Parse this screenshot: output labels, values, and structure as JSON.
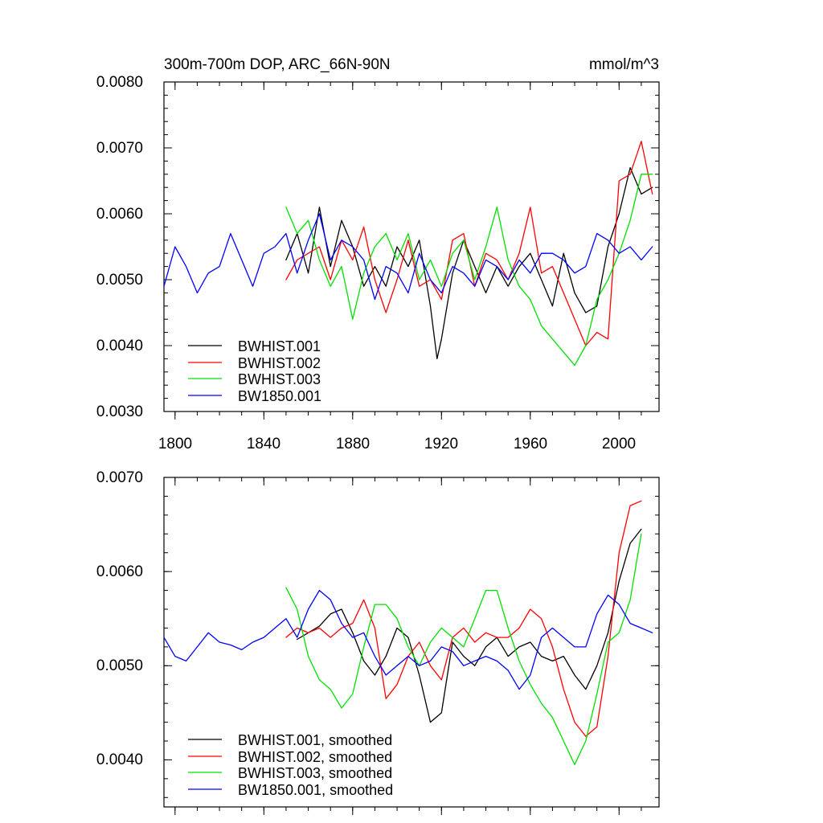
{
  "colors": {
    "BWHIST.001": "#000000",
    "BWHIST.002": "#ff0000",
    "BWHIST.003": "#00e000",
    "BW1850.001": "#0000ff"
  },
  "chart_data": [
    {
      "type": "line",
      "title": "300m-700m DOP, ARC_66N-90N",
      "units": "mmol/m^3",
      "xlabel": "",
      "ylabel": "",
      "xlim": [
        1795,
        2018
      ],
      "ylim": [
        0.003,
        0.008
      ],
      "grid": false,
      "legend_position": "bottom-left",
      "yticks": [
        {
          "value": 0.003,
          "label": "0.0030"
        },
        {
          "value": 0.004,
          "label": "0.0040"
        },
        {
          "value": 0.005,
          "label": "0.0050"
        },
        {
          "value": 0.006,
          "label": "0.0060"
        },
        {
          "value": 0.007,
          "label": "0.0070"
        },
        {
          "value": 0.008,
          "label": "0.0080"
        }
      ],
      "xticks": [
        {
          "value": 1800,
          "label": "1800"
        },
        {
          "value": 1840,
          "label": "1840"
        },
        {
          "value": 1880,
          "label": "1880"
        },
        {
          "value": 1920,
          "label": "1920"
        },
        {
          "value": 1960,
          "label": "1960"
        },
        {
          "value": 2000,
          "label": "2000"
        }
      ],
      "series": [
        {
          "name": "BWHIST.001",
          "color": "#000000",
          "x": [
            1850,
            1855,
            1860,
            1865,
            1870,
            1875,
            1880,
            1885,
            1890,
            1895,
            1900,
            1905,
            1910,
            1915,
            1918,
            1920,
            1925,
            1930,
            1935,
            1940,
            1945,
            1950,
            1955,
            1960,
            1965,
            1970,
            1975,
            1980,
            1985,
            1990,
            1995,
            2000,
            2005,
            2010,
            2015
          ],
          "y": [
            0.0053,
            0.0057,
            0.0051,
            0.0061,
            0.0052,
            0.0059,
            0.0055,
            0.0049,
            0.0052,
            0.0049,
            0.0055,
            0.0052,
            0.0056,
            0.0046,
            0.0038,
            0.0041,
            0.0051,
            0.0056,
            0.0052,
            0.0048,
            0.0052,
            0.0049,
            0.0052,
            0.0054,
            0.005,
            0.0046,
            0.0054,
            0.0048,
            0.0045,
            0.0046,
            0.0055,
            0.006,
            0.0067,
            0.0063,
            0.0064
          ]
        },
        {
          "name": "BWHIST.002",
          "color": "#ff0000",
          "x": [
            1850,
            1855,
            1860,
            1865,
            1870,
            1875,
            1880,
            1885,
            1890,
            1895,
            1900,
            1905,
            1910,
            1915,
            1920,
            1925,
            1930,
            1935,
            1940,
            1945,
            1950,
            1955,
            1960,
            1965,
            1970,
            1975,
            1980,
            1985,
            1990,
            1995,
            2000,
            2005,
            2010,
            2015
          ],
          "y": [
            0.005,
            0.0053,
            0.0054,
            0.0055,
            0.005,
            0.0056,
            0.0053,
            0.0058,
            0.005,
            0.0045,
            0.005,
            0.0056,
            0.0049,
            0.005,
            0.0047,
            0.0056,
            0.0057,
            0.0049,
            0.0054,
            0.0053,
            0.005,
            0.0054,
            0.0061,
            0.0051,
            0.0052,
            0.0048,
            0.0044,
            0.004,
            0.0042,
            0.0041,
            0.0065,
            0.0066,
            0.0071,
            0.0063
          ]
        },
        {
          "name": "BWHIST.003",
          "color": "#00e000",
          "x": [
            1850,
            1855,
            1860,
            1865,
            1870,
            1875,
            1880,
            1885,
            1890,
            1895,
            1900,
            1905,
            1910,
            1915,
            1920,
            1925,
            1930,
            1935,
            1940,
            1945,
            1950,
            1955,
            1960,
            1965,
            1970,
            1975,
            1980,
            1985,
            1990,
            1995,
            2000,
            2005,
            2010,
            2015
          ],
          "y": [
            0.0061,
            0.0057,
            0.0059,
            0.0053,
            0.0049,
            0.0052,
            0.0044,
            0.0051,
            0.0055,
            0.0057,
            0.0053,
            0.0057,
            0.005,
            0.0053,
            0.0049,
            0.0054,
            0.0056,
            0.005,
            0.0055,
            0.0061,
            0.0053,
            0.0049,
            0.0047,
            0.0043,
            0.0041,
            0.0039,
            0.0037,
            0.004,
            0.0047,
            0.005,
            0.0054,
            0.0059,
            0.0066,
            0.0066
          ]
        },
        {
          "name": "BW1850.001",
          "color": "#0000ff",
          "x": [
            1795,
            1800,
            1805,
            1810,
            1815,
            1820,
            1825,
            1830,
            1835,
            1840,
            1845,
            1850,
            1855,
            1860,
            1865,
            1870,
            1875,
            1880,
            1885,
            1890,
            1895,
            1900,
            1905,
            1910,
            1915,
            1920,
            1925,
            1930,
            1935,
            1940,
            1945,
            1950,
            1955,
            1960,
            1965,
            1970,
            1975,
            1980,
            1985,
            1990,
            1995,
            2000,
            2005,
            2010,
            2015
          ],
          "y": [
            0.0049,
            0.0055,
            0.0052,
            0.0048,
            0.0051,
            0.0052,
            0.0057,
            0.0053,
            0.0049,
            0.0054,
            0.0055,
            0.0057,
            0.0051,
            0.0056,
            0.006,
            0.0053,
            0.0056,
            0.0055,
            0.0053,
            0.0047,
            0.0052,
            0.0051,
            0.0048,
            0.0054,
            0.005,
            0.0048,
            0.0052,
            0.0051,
            0.0049,
            0.0053,
            0.0052,
            0.005,
            0.0053,
            0.0051,
            0.0054,
            0.0054,
            0.0053,
            0.0051,
            0.0052,
            0.0057,
            0.0056,
            0.0054,
            0.0055,
            0.0053,
            0.0055
          ]
        }
      ]
    },
    {
      "type": "line",
      "title": "",
      "xlabel": "",
      "ylabel": "",
      "xlim": [
        1795,
        2018
      ],
      "ylim": [
        0.0035,
        0.007
      ],
      "grid": false,
      "legend_position": "bottom-left",
      "yticks": [
        {
          "value": 0.004,
          "label": "0.0040"
        },
        {
          "value": 0.005,
          "label": "0.0050"
        },
        {
          "value": 0.006,
          "label": "0.0060"
        },
        {
          "value": 0.007,
          "label": "0.0070"
        }
      ],
      "xticks": [
        {
          "value": 1800,
          "label": ""
        },
        {
          "value": 1840,
          "label": ""
        },
        {
          "value": 1880,
          "label": ""
        },
        {
          "value": 1920,
          "label": ""
        },
        {
          "value": 1960,
          "label": ""
        },
        {
          "value": 2000,
          "label": ""
        }
      ],
      "series": [
        {
          "name": "BWHIST.001, smoothed",
          "color": "#000000",
          "x": [
            1855,
            1860,
            1865,
            1870,
            1875,
            1880,
            1885,
            1890,
            1895,
            1900,
            1905,
            1910,
            1915,
            1920,
            1925,
            1930,
            1935,
            1940,
            1945,
            1950,
            1955,
            1960,
            1965,
            1970,
            1975,
            1980,
            1985,
            1990,
            1995,
            2000,
            2005,
            2010
          ],
          "y": [
            0.00528,
            0.00535,
            0.00542,
            0.00555,
            0.0056,
            0.00535,
            0.00505,
            0.0049,
            0.0051,
            0.0054,
            0.0053,
            0.0049,
            0.0044,
            0.0045,
            0.00525,
            0.0051,
            0.005,
            0.0052,
            0.0053,
            0.0051,
            0.0052,
            0.00525,
            0.0051,
            0.00505,
            0.0051,
            0.0049,
            0.00475,
            0.005,
            0.00535,
            0.0059,
            0.0063,
            0.00645
          ]
        },
        {
          "name": "BWHIST.002, smoothed",
          "color": "#ff0000",
          "x": [
            1850,
            1855,
            1860,
            1865,
            1870,
            1875,
            1880,
            1885,
            1890,
            1895,
            1900,
            1905,
            1910,
            1915,
            1920,
            1925,
            1930,
            1935,
            1940,
            1945,
            1950,
            1955,
            1960,
            1965,
            1970,
            1975,
            1980,
            1985,
            1990,
            1995,
            2000,
            2005,
            2010
          ],
          "y": [
            0.0053,
            0.0054,
            0.00535,
            0.0054,
            0.0053,
            0.0054,
            0.00545,
            0.0057,
            0.0054,
            0.00465,
            0.0048,
            0.0051,
            0.00525,
            0.005,
            0.00485,
            0.0053,
            0.0054,
            0.00525,
            0.00535,
            0.0053,
            0.0053,
            0.0054,
            0.0056,
            0.0055,
            0.0052,
            0.00475,
            0.0044,
            0.00425,
            0.00435,
            0.0051,
            0.0062,
            0.0067,
            0.00675
          ]
        },
        {
          "name": "BWHIST.003, smoothed",
          "color": "#00e000",
          "x": [
            1850,
            1855,
            1860,
            1865,
            1870,
            1875,
            1880,
            1885,
            1890,
            1895,
            1900,
            1905,
            1910,
            1915,
            1920,
            1925,
            1930,
            1935,
            1940,
            1945,
            1950,
            1955,
            1960,
            1965,
            1970,
            1975,
            1980,
            1985,
            1990,
            1995,
            2000,
            2005,
            2010
          ],
          "y": [
            0.00583,
            0.0056,
            0.0051,
            0.00485,
            0.00475,
            0.00455,
            0.0047,
            0.0052,
            0.00565,
            0.00565,
            0.0055,
            0.0052,
            0.005,
            0.00525,
            0.0054,
            0.0053,
            0.0052,
            0.0055,
            0.0058,
            0.0058,
            0.0054,
            0.00505,
            0.0048,
            0.0046,
            0.00445,
            0.0042,
            0.00395,
            0.0042,
            0.0047,
            0.00525,
            0.00535,
            0.0057,
            0.0064
          ]
        },
        {
          "name": "BW1850.001, smoothed",
          "color": "#0000ff",
          "x": [
            1795,
            1800,
            1805,
            1810,
            1815,
            1820,
            1825,
            1830,
            1835,
            1840,
            1845,
            1850,
            1855,
            1860,
            1865,
            1870,
            1875,
            1880,
            1885,
            1890,
            1895,
            1900,
            1905,
            1910,
            1915,
            1920,
            1925,
            1930,
            1935,
            1940,
            1945,
            1950,
            1955,
            1960,
            1965,
            1970,
            1975,
            1980,
            1985,
            1990,
            1995,
            2000,
            2005,
            2010,
            2015
          ],
          "y": [
            0.0053,
            0.0051,
            0.00505,
            0.0052,
            0.00535,
            0.00525,
            0.00522,
            0.00517,
            0.00525,
            0.0053,
            0.0054,
            0.0055,
            0.0053,
            0.0056,
            0.0058,
            0.0057,
            0.00545,
            0.0053,
            0.00535,
            0.0051,
            0.0049,
            0.005,
            0.0051,
            0.005,
            0.00505,
            0.0052,
            0.00515,
            0.005,
            0.00505,
            0.0051,
            0.00505,
            0.00495,
            0.00475,
            0.0049,
            0.0053,
            0.0054,
            0.0053,
            0.0052,
            0.0052,
            0.00555,
            0.00575,
            0.00565,
            0.00545,
            0.0054,
            0.00535
          ]
        }
      ]
    }
  ]
}
